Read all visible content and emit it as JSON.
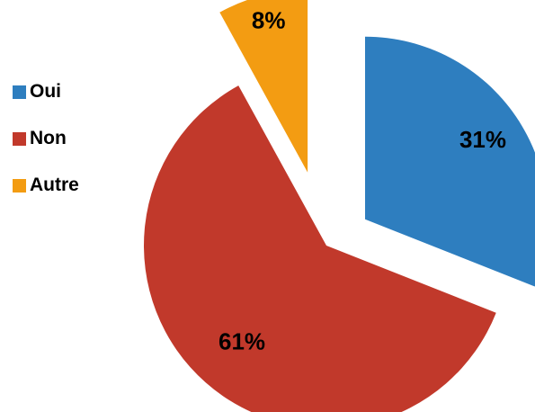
{
  "chart_data": {
    "type": "pie",
    "categories": [
      "Oui",
      "Non",
      "Autre"
    ],
    "values": [
      31,
      61,
      8
    ],
    "labels": [
      "31%",
      "61%",
      "8%"
    ],
    "colors": [
      "#2E7EBF",
      "#C1392B",
      "#F39C12"
    ],
    "exploded": true,
    "legend_position": "left",
    "title": ""
  }
}
